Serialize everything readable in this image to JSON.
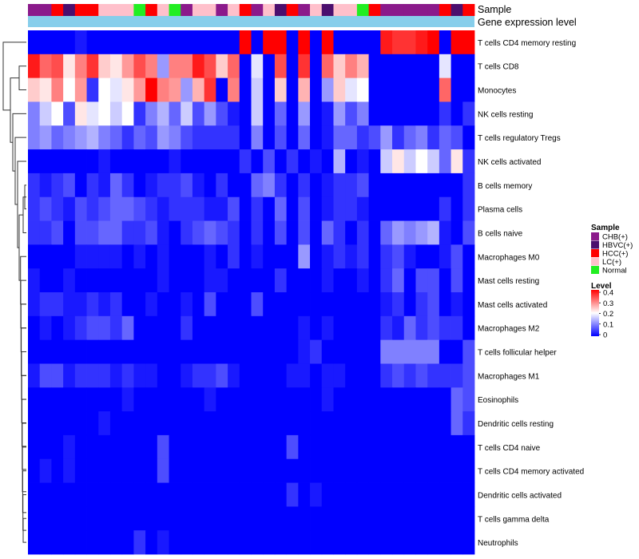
{
  "chart_data": {
    "type": "heatmap",
    "title": "",
    "annotation_labels": [
      "Sample",
      "Gene expression level"
    ],
    "sample_groups": [
      "CHB(+)",
      "CHB(+)",
      "HCC(+)",
      "HBVC(+)",
      "HCC(+)",
      "HCC(+)",
      "LC(+)",
      "LC(+)",
      "LC(+)",
      "Normal",
      "HCC(+)",
      "LC(+)",
      "Normal",
      "CHB(+)",
      "LC(+)",
      "LC(+)",
      "CHB(+)",
      "LC(+)",
      "HCC(+)",
      "CHB(+)",
      "LC(+)",
      "HBVC(+)",
      "HCC(+)",
      "CHB(+)",
      "LC(+)",
      "HBVC(+)",
      "LC(+)",
      "LC(+)",
      "Normal",
      "HCC(+)",
      "CHB(+)",
      "CHB(+)",
      "CHB(+)",
      "CHB(+)",
      "CHB(+)",
      "HCC(+)",
      "HBVC(+)",
      "HCC(+)"
    ],
    "rows": [
      "T cells CD4 memory resting",
      "T cells CD8",
      "Monocytes",
      "NK cells resting",
      "T cells regulatory  Tregs",
      "NK cells activated",
      "B cells memory",
      "Plasma cells",
      "B cells naive",
      "Macrophages M0",
      "Mast cells resting",
      "Mast cells activated",
      "Macrophages M2",
      "T cells follicular helper",
      "Macrophages M1",
      "Eosinophils",
      "Dendritic cells resting",
      "T cells CD4 naive",
      "T cells CD4 memory activated",
      "Dendritic cells activated",
      "T cells gamma delta",
      "Neutrophils"
    ],
    "values": [
      [
        0,
        0,
        0,
        0,
        0.02,
        0,
        0,
        0,
        0,
        0,
        0,
        0,
        0,
        0,
        0,
        0,
        0,
        0,
        0.4,
        0,
        0.4,
        0.4,
        0,
        0.4,
        0,
        0.4,
        0,
        0,
        0,
        0,
        0.38,
        0.36,
        0.36,
        0.38,
        0.4,
        0,
        0.4,
        0.4
      ],
      [
        0.38,
        0.32,
        0.34,
        0.22,
        0.3,
        0.36,
        0.24,
        0.22,
        0.28,
        0.34,
        0.3,
        0.12,
        0.3,
        0.3,
        0.38,
        0.34,
        0.24,
        0.32,
        0,
        0.18,
        0,
        0.34,
        0,
        0.36,
        0,
        0.32,
        0.24,
        0.3,
        0.26,
        0,
        0,
        0,
        0,
        0,
        0,
        0.18,
        0,
        0
      ],
      [
        0.24,
        0.22,
        0.3,
        0.2,
        0.28,
        0.04,
        0.2,
        0.18,
        0.22,
        0.28,
        0.4,
        0.3,
        0.28,
        0.12,
        0.26,
        0.36,
        0,
        0.3,
        0,
        0.16,
        0,
        0.24,
        0,
        0.26,
        0,
        0.12,
        0.24,
        0.18,
        0.2,
        0,
        0,
        0,
        0,
        0,
        0,
        0.32,
        0,
        0
      ],
      [
        0.1,
        0.16,
        0.2,
        0.06,
        0.22,
        0.18,
        0.2,
        0.16,
        0.2,
        0.04,
        0.1,
        0.14,
        0.08,
        0.16,
        0.06,
        0.12,
        0.06,
        0.02,
        0,
        0.16,
        0,
        0.08,
        0,
        0.12,
        0,
        0.02,
        0.12,
        0.06,
        0.1,
        0,
        0,
        0,
        0,
        0,
        0,
        0.04,
        0,
        0.04
      ],
      [
        0.1,
        0.12,
        0.08,
        0.1,
        0.12,
        0.14,
        0.1,
        0.08,
        0.04,
        0.08,
        0.06,
        0.12,
        0.1,
        0.06,
        0.04,
        0.04,
        0.04,
        0.04,
        0,
        0.1,
        0,
        0.06,
        0,
        0.08,
        0,
        0.02,
        0.08,
        0.08,
        0.04,
        0.06,
        0.12,
        0.04,
        0.08,
        0.1,
        0.04,
        0.08,
        0.06,
        0
      ],
      [
        0,
        0,
        0,
        0,
        0,
        0,
        0.02,
        0,
        0,
        0,
        0,
        0,
        0.02,
        0,
        0,
        0,
        0,
        0,
        0.04,
        0,
        0.06,
        0,
        0.04,
        0,
        0.02,
        0,
        0.14,
        0,
        0.02,
        0,
        0.16,
        0.22,
        0.16,
        0.2,
        0.16,
        0.08,
        0.22,
        0.04
      ],
      [
        0.04,
        0.02,
        0.04,
        0.06,
        0,
        0.04,
        0.02,
        0.08,
        0.04,
        0,
        0.02,
        0.04,
        0.04,
        0.06,
        0.02,
        0,
        0.04,
        0,
        0,
        0.08,
        0.1,
        0.04,
        0,
        0.04,
        0,
        0.02,
        0.04,
        0.04,
        0.06,
        0,
        0,
        0,
        0,
        0,
        0,
        0,
        0,
        0.04
      ],
      [
        0.04,
        0.06,
        0.04,
        0.02,
        0.06,
        0.04,
        0.06,
        0.08,
        0.08,
        0.06,
        0.04,
        0.02,
        0.04,
        0.04,
        0.04,
        0.02,
        0.02,
        0.06,
        0,
        0.04,
        0,
        0.08,
        0,
        0.06,
        0,
        0.02,
        0.04,
        0.04,
        0.02,
        0,
        0,
        0,
        0,
        0,
        0,
        0.04,
        0,
        0.04
      ],
      [
        0.04,
        0.04,
        0.06,
        0,
        0.06,
        0.06,
        0.08,
        0.08,
        0.04,
        0.04,
        0.06,
        0.02,
        0,
        0.04,
        0.06,
        0.08,
        0.06,
        0.04,
        0,
        0.04,
        0,
        0.06,
        0,
        0.06,
        0,
        0.08,
        0.04,
        0,
        0.04,
        0,
        0.08,
        0.12,
        0.1,
        0.12,
        0.14,
        0.02,
        0,
        0.06
      ],
      [
        0,
        0,
        0,
        0,
        0.02,
        0.02,
        0.02,
        0.02,
        0,
        0.02,
        0,
        0.02,
        0,
        0,
        0,
        0.02,
        0,
        0.04,
        0,
        0.02,
        0,
        0,
        0,
        0.12,
        0,
        0.02,
        0.04,
        0.02,
        0.04,
        0,
        0.04,
        0.06,
        0.02,
        0,
        0,
        0.02,
        0.06,
        0
      ],
      [
        0.02,
        0,
        0,
        0.02,
        0,
        0,
        0,
        0,
        0,
        0,
        0,
        0.02,
        0,
        0,
        0,
        0.02,
        0.02,
        0,
        0,
        0,
        0,
        0.04,
        0,
        0,
        0,
        0.02,
        0,
        0,
        0.02,
        0,
        0.04,
        0.08,
        0,
        0.06,
        0.06,
        0,
        0.06,
        0
      ],
      [
        0.02,
        0.04,
        0.04,
        0.02,
        0.02,
        0.04,
        0.02,
        0.04,
        0,
        0,
        0.02,
        0,
        0,
        0.02,
        0,
        0.06,
        0,
        0,
        0,
        0.06,
        0,
        0,
        0,
        0,
        0,
        0,
        0,
        0,
        0,
        0,
        0.02,
        0.04,
        0,
        0.04,
        0.06,
        0,
        0.02,
        0
      ],
      [
        0,
        0.02,
        0,
        0.02,
        0.04,
        0.06,
        0.06,
        0.04,
        0.08,
        0,
        0,
        0,
        0,
        0.04,
        0,
        0,
        0,
        0,
        0,
        0,
        0,
        0,
        0,
        0.02,
        0,
        0.02,
        0,
        0,
        0,
        0,
        0.04,
        0.02,
        0.08,
        0.04,
        0.06,
        0.04,
        0.04,
        0
      ],
      [
        0,
        0,
        0,
        0,
        0,
        0,
        0,
        0,
        0,
        0,
        0,
        0,
        0,
        0,
        0,
        0,
        0,
        0,
        0,
        0,
        0,
        0,
        0,
        0.02,
        0.04,
        0,
        0,
        0,
        0,
        0,
        0.1,
        0.1,
        0.1,
        0.1,
        0.1,
        0,
        0,
        0.06
      ],
      [
        0.02,
        0.06,
        0.06,
        0.02,
        0.04,
        0.04,
        0.04,
        0.02,
        0.04,
        0.02,
        0.02,
        0,
        0,
        0.02,
        0.04,
        0.04,
        0.06,
        0.02,
        0,
        0,
        0,
        0,
        0.02,
        0.02,
        0,
        0.02,
        0.02,
        0,
        0,
        0,
        0.04,
        0.06,
        0.04,
        0.06,
        0.04,
        0.04,
        0.04,
        0.06
      ],
      [
        0,
        0,
        0,
        0,
        0,
        0,
        0,
        0,
        0.02,
        0,
        0,
        0,
        0,
        0,
        0,
        0.02,
        0,
        0,
        0,
        0,
        0,
        0,
        0,
        0,
        0,
        0.02,
        0,
        0,
        0,
        0,
        0,
        0,
        0,
        0,
        0,
        0,
        0.08,
        0.06
      ],
      [
        0,
        0,
        0,
        0,
        0,
        0,
        0.02,
        0,
        0,
        0,
        0,
        0,
        0,
        0,
        0,
        0,
        0,
        0,
        0,
        0,
        0,
        0,
        0,
        0,
        0,
        0,
        0,
        0,
        0,
        0,
        0,
        0,
        0,
        0,
        0,
        0,
        0.08,
        0.04
      ],
      [
        0,
        0,
        0,
        0.02,
        0,
        0,
        0,
        0,
        0,
        0,
        0,
        0.06,
        0,
        0,
        0,
        0,
        0,
        0,
        0,
        0,
        0,
        0,
        0.06,
        0,
        0,
        0,
        0,
        0,
        0,
        0,
        0,
        0,
        0,
        0,
        0,
        0,
        0,
        0
      ],
      [
        0,
        0.02,
        0,
        0.02,
        0,
        0,
        0,
        0,
        0,
        0,
        0,
        0.06,
        0,
        0,
        0,
        0,
        0,
        0,
        0,
        0,
        0,
        0,
        0,
        0,
        0,
        0,
        0,
        0,
        0,
        0,
        0,
        0,
        0,
        0,
        0,
        0,
        0,
        0
      ],
      [
        0,
        0,
        0,
        0,
        0,
        0,
        0,
        0,
        0,
        0,
        0,
        0,
        0,
        0,
        0,
        0,
        0,
        0,
        0,
        0,
        0,
        0,
        0.04,
        0,
        0.02,
        0,
        0,
        0,
        0,
        0,
        0,
        0,
        0,
        0,
        0,
        0,
        0,
        0
      ],
      [
        0,
        0,
        0,
        0,
        0,
        0,
        0,
        0,
        0,
        0,
        0,
        0,
        0,
        0,
        0,
        0,
        0,
        0,
        0,
        0,
        0,
        0,
        0,
        0,
        0,
        0,
        0,
        0,
        0,
        0,
        0,
        0,
        0,
        0,
        0,
        0,
        0,
        0
      ],
      [
        0,
        0,
        0,
        0,
        0,
        0,
        0,
        0,
        0,
        0.04,
        0,
        0.02,
        0,
        0,
        0,
        0,
        0,
        0,
        0,
        0,
        0,
        0,
        0,
        0,
        0,
        0,
        0,
        0,
        0,
        0,
        0,
        0,
        0,
        0,
        0,
        0,
        0,
        0
      ]
    ],
    "legend_sample_title": "Sample",
    "legend_sample": [
      {
        "label": "CHB(+)",
        "color": "#8b1a8b"
      },
      {
        "label": "HBVC(+)",
        "color": "#4b0f6e"
      },
      {
        "label": "HCC(+)",
        "color": "#ff0000"
      },
      {
        "label": "LC(+)",
        "color": "#ffc0cb"
      },
      {
        "label": "Normal",
        "color": "#22ee22"
      }
    ],
    "legend_level_title": "Level",
    "legend_level_ticks": [
      "0.4",
      "0.3",
      "0.2",
      "0.1",
      "0"
    ],
    "level_range": [
      0,
      0.4
    ],
    "colors": {
      "low": "#0000ff",
      "mid": "#ffffff",
      "high": "#ff0000",
      "expression_bar": "#87ceeb",
      "dendrogram": "#333333"
    }
  }
}
